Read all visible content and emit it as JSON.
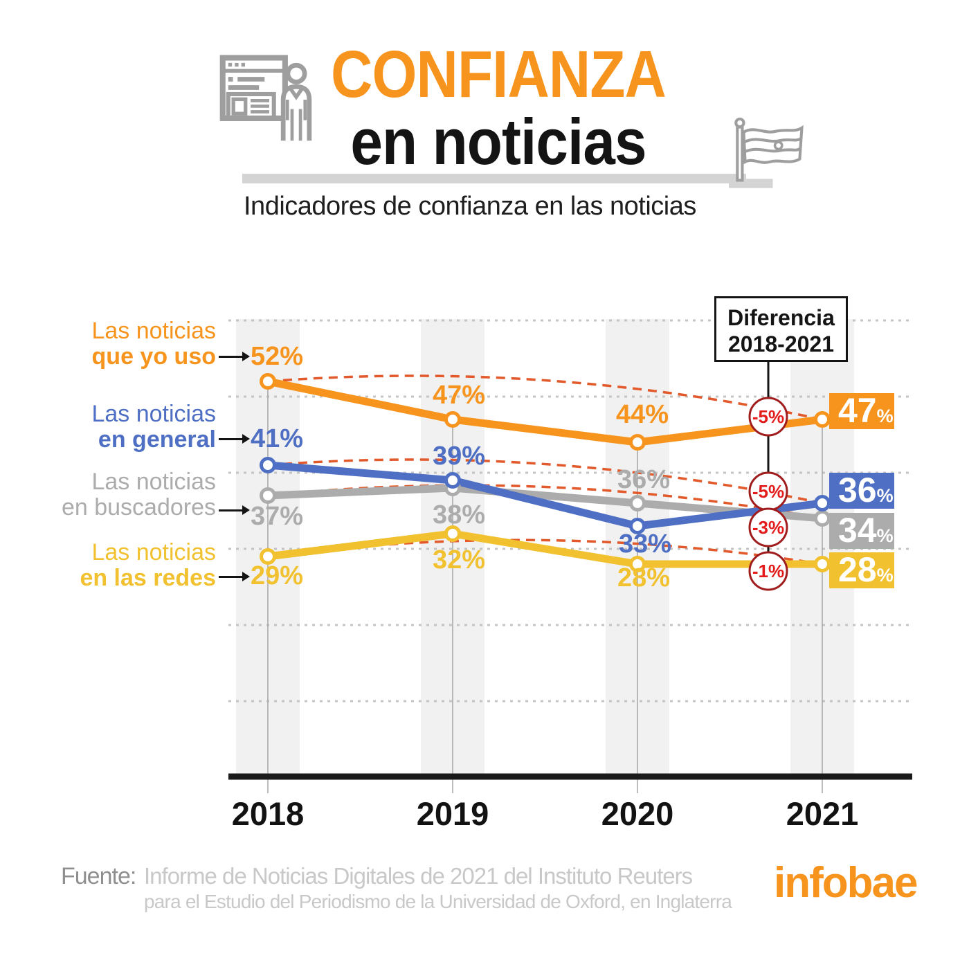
{
  "header": {
    "title_accent": "CONFIANZA",
    "title_rest": "en noticias",
    "subtitle": "Indicadores de confianza en las noticias",
    "accent_color": "#F7941D",
    "icons": [
      "newspaper-presenter-icon",
      "flag-icon"
    ]
  },
  "chart_data": {
    "type": "line",
    "title": "Indicadores de confianza en las noticias",
    "x": [
      "2018",
      "2019",
      "2020",
      "2021"
    ],
    "ylabel": "",
    "xlabel": "",
    "ylim": [
      10,
      60
    ],
    "grid_values": [
      60,
      50,
      40,
      30,
      20,
      10
    ],
    "grid": "horizontal-dotted",
    "legend_position": "left",
    "series": [
      {
        "name": "Las noticias que yo uso",
        "label_line1": "Las noticias",
        "label_line2": "que yo uso",
        "label_line2_bold": true,
        "color": "#F7941D",
        "values": [
          52,
          47,
          44,
          47
        ],
        "difference_2018_2021": "-5%"
      },
      {
        "name": "Las noticias en general",
        "label_line1": "Las noticias",
        "label_line2": "en general",
        "label_line2_bold": true,
        "color": "#4E6FC3",
        "values": [
          41,
          39,
          33,
          36
        ],
        "difference_2018_2021": "-5%"
      },
      {
        "name": "Las noticias en buscadores",
        "label_line1": "Las noticias",
        "label_line2": "en buscadores",
        "label_line2_bold": false,
        "color": "#ACACAC",
        "values": [
          37,
          38,
          36,
          34
        ],
        "difference_2018_2021": "-3%"
      },
      {
        "name": "Las noticias en las redes",
        "label_line1": "Las noticias",
        "label_line2": "en las redes",
        "label_line2_bold": true,
        "color": "#F1C12F",
        "values": [
          29,
          32,
          28,
          28
        ],
        "difference_2018_2021": "-1%"
      }
    ],
    "difference_label": {
      "line1": "Diferencia",
      "line2": "2018-2021"
    },
    "diff_text_color": "#E41B1B",
    "diff_border_color": "#A11D1D",
    "dashed_trend_color": "#E2592B"
  },
  "footer": {
    "source_label": "Fuente:",
    "source_line1": "Informe de Noticias Digitales de 2021 del Instituto Reuters",
    "source_line2": "para el Estudio del Periodismo de la Universidad de Oxford, en Inglaterra",
    "brand": "infobae"
  }
}
